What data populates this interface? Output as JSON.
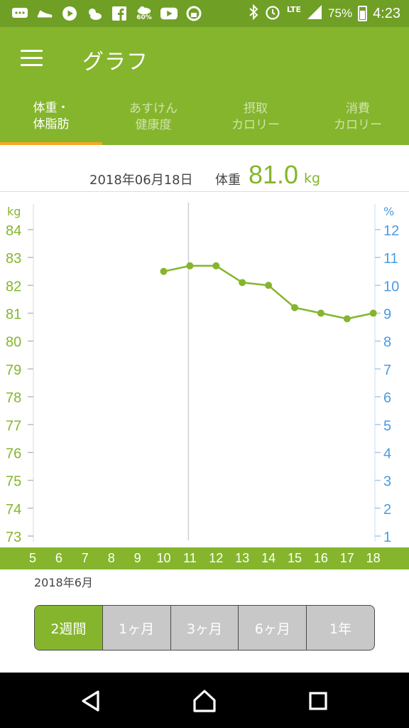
{
  "status_bar": {
    "battery": "75%",
    "battery_level": 0.75,
    "time": "4:23",
    "network": "LTE",
    "weather_badge": "60%",
    "icons": [
      "chat-icon",
      "sneaker-icon",
      "play-icon",
      "weather-icon",
      "facebook-icon",
      "cloud-rain-icon",
      "youtube-icon",
      "lock-sync-icon",
      "bluetooth-icon",
      "alarm-icon",
      "signal-icon",
      "battery-icon"
    ]
  },
  "app_bar": {
    "title": "グラフ"
  },
  "tabs": [
    {
      "line1": "体重・",
      "line2": "体脂肪",
      "active": true
    },
    {
      "line1": "あすけん",
      "line2": "健康度",
      "active": false
    },
    {
      "line1": "摂取",
      "line2": "カロリー",
      "active": false
    },
    {
      "line1": "消費",
      "line2": "カロリー",
      "active": false
    }
  ],
  "summary": {
    "date": "2018年06月18日",
    "label": "体重",
    "value": "81.0",
    "unit": "kg"
  },
  "chart_data": {
    "type": "line",
    "left_axis": {
      "unit": "kg",
      "ticks": [
        84,
        83,
        82,
        81,
        80,
        79,
        78,
        77,
        76,
        75,
        74,
        73
      ],
      "range": [
        73,
        84
      ],
      "color": "#85b52c"
    },
    "right_axis": {
      "unit": "%",
      "ticks": [
        12,
        11,
        10,
        9,
        8,
        7,
        6,
        5,
        4,
        3,
        2,
        1
      ],
      "range": [
        1,
        12
      ],
      "color": "#4a9be0"
    },
    "x_ticks": [
      "5",
      "6",
      "7",
      "8",
      "9",
      "10",
      "11",
      "12",
      "13",
      "14",
      "15",
      "16",
      "17",
      "18"
    ],
    "x_label": "2018年6月",
    "series": [
      {
        "x": [
          10,
          11,
          12,
          13,
          14,
          15,
          16,
          17,
          18
        ],
        "values": [
          82.5,
          82.7,
          82.7,
          82.1,
          82.0,
          81.2,
          81.0,
          80.8,
          81.0
        ],
        "color": "#85b52c"
      }
    ],
    "cursor_x": 11
  },
  "period_selector": {
    "options": [
      "2週間",
      "1ヶ月",
      "3ヶ月",
      "6ヶ月",
      "1年"
    ],
    "selected": "2週間"
  }
}
